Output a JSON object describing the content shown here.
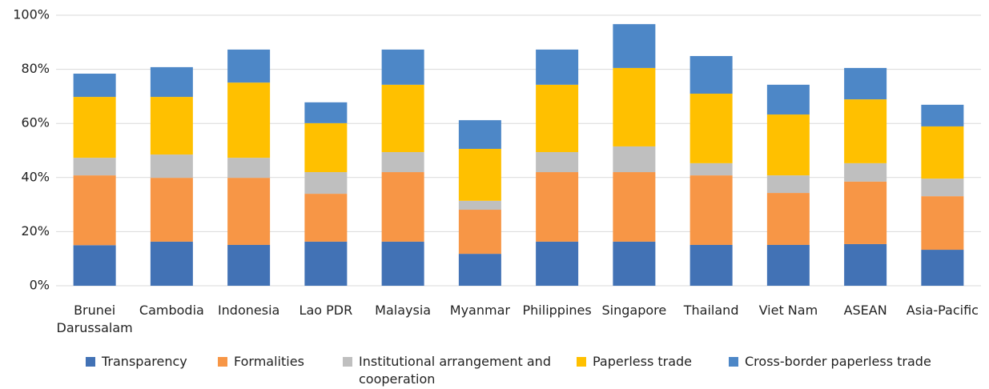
{
  "chart_data": {
    "type": "stacked_bar",
    "categories": [
      "Brunei Darussalam",
      "Cambodia",
      "Indonesia",
      "Lao PDR",
      "Malaysia",
      "Myanmar",
      "Philippines",
      "Singapore",
      "Thailand",
      "Viet Nam",
      "ASEAN",
      "Asia-Pacific"
    ],
    "series": [
      {
        "name": "Transparency",
        "color": "#4272b5",
        "values": [
          15,
          16.3,
          15.1,
          16.3,
          16.3,
          11.8,
          16.3,
          16.3,
          15.1,
          15.1,
          15.4,
          13.3
        ]
      },
      {
        "name": "Formalities",
        "color": "#f79646",
        "values": [
          25.8,
          23.6,
          24.8,
          17.7,
          25.7,
          16.3,
          25.7,
          25.7,
          25.7,
          19.2,
          23.1,
          19.8
        ]
      },
      {
        "name": "Institutional arrangement and cooperation",
        "color": "#bfbfbf",
        "values": [
          6.5,
          8.6,
          7.4,
          8,
          7.4,
          3.3,
          7.4,
          9.5,
          4.5,
          6.5,
          6.8,
          6.5
        ]
      },
      {
        "name": "Paperless trade",
        "color": "#ffc000",
        "values": [
          22.5,
          21.3,
          27.8,
          18.1,
          24.9,
          19.2,
          24.9,
          29,
          25.7,
          22.5,
          23.6,
          19.3
        ]
      },
      {
        "name": "Cross-border paperless trade",
        "color": "#4d87c7",
        "values": [
          8.6,
          11,
          12.2,
          7.7,
          13,
          10.6,
          13,
          16.2,
          13.9,
          11,
          11.6,
          8
        ]
      }
    ],
    "ylim": [
      0,
      100
    ],
    "yticks": [
      {
        "value": 0,
        "label": "0%"
      },
      {
        "value": 20,
        "label": "20%"
      },
      {
        "value": 40,
        "label": "40%"
      },
      {
        "value": 60,
        "label": "60%"
      },
      {
        "value": 80,
        "label": "80%"
      },
      {
        "value": 100,
        "label": "100%"
      }
    ],
    "grid": true
  }
}
